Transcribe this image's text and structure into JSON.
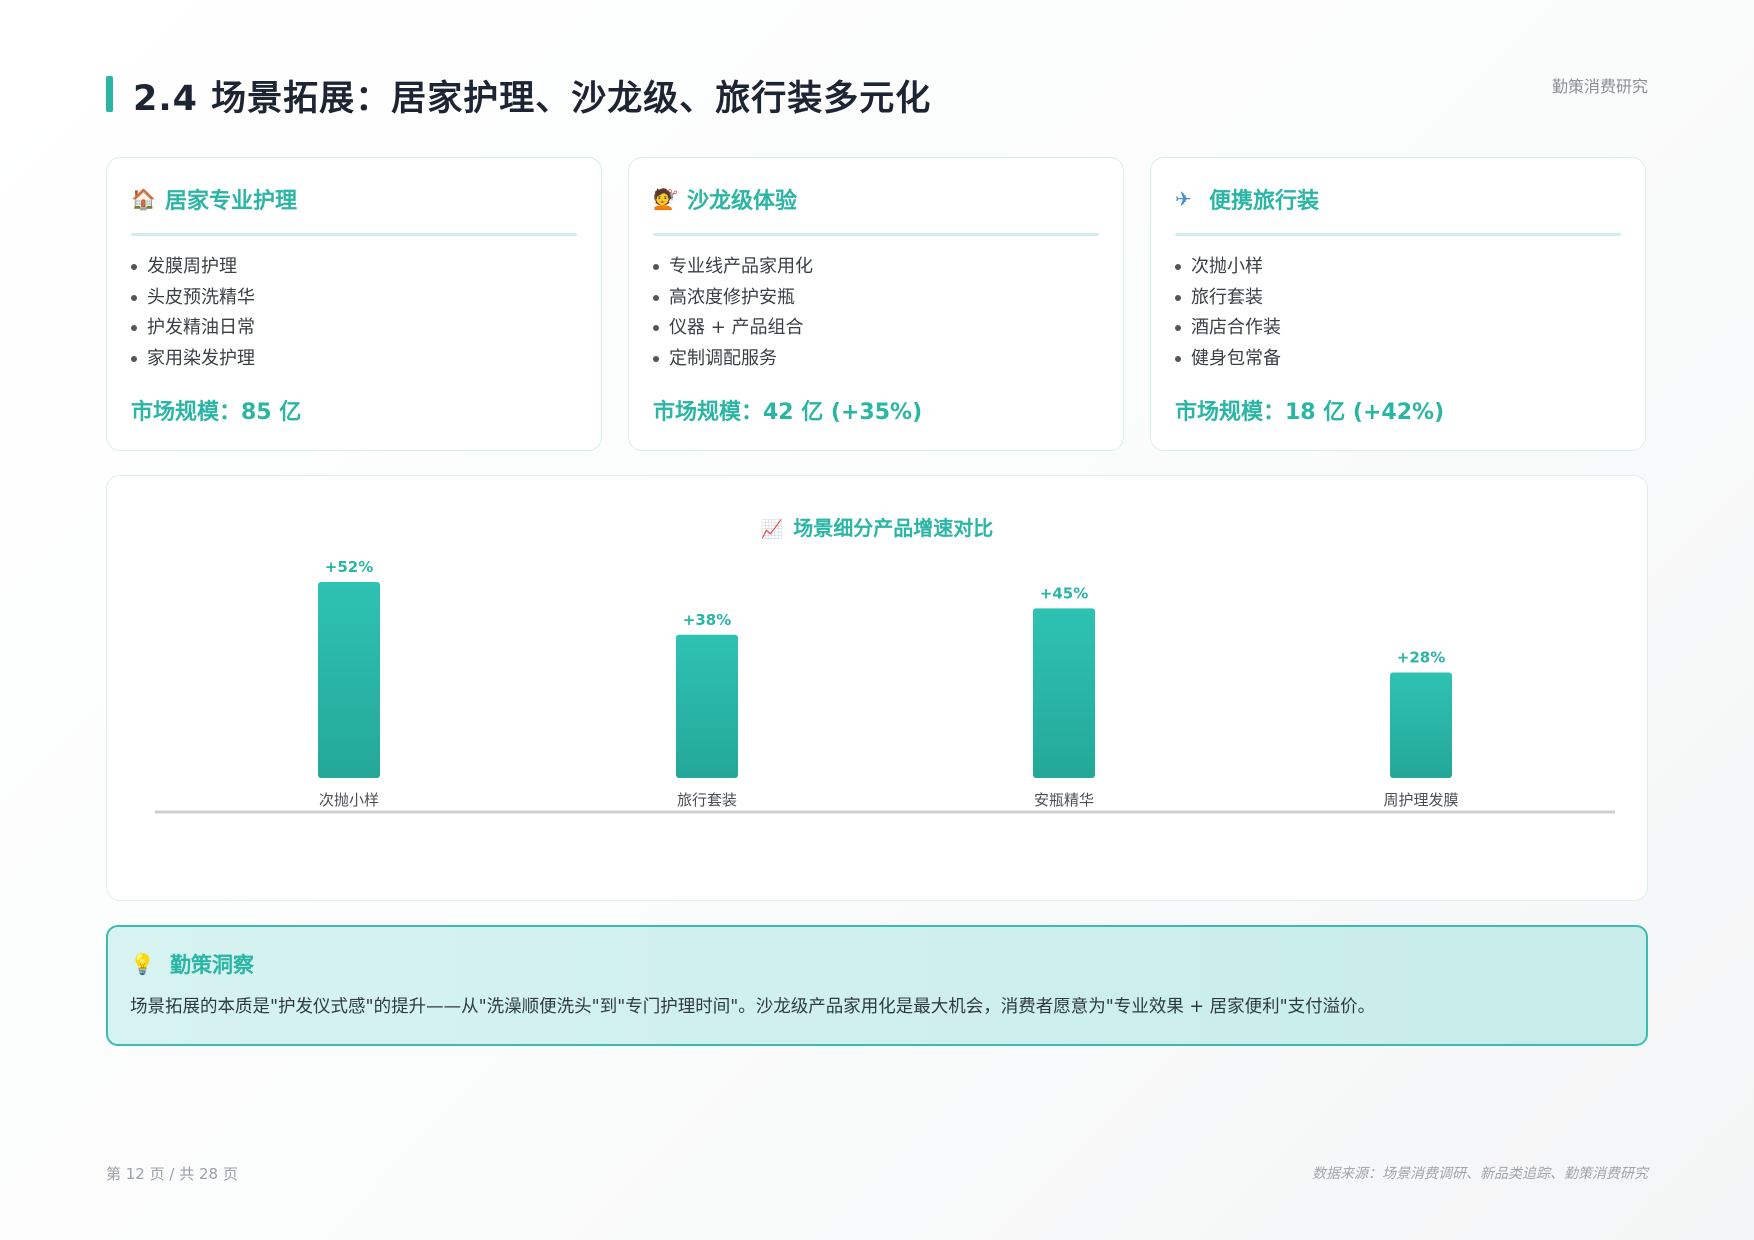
{
  "header": {
    "title": "2.4 场景拓展：居家护理、沙龙级、旅行装多元化",
    "brand": "勤策消费研究"
  },
  "cards": [
    {
      "icon": "house-icon",
      "title": "居家专业护理",
      "items": [
        "发膜周护理",
        "头皮预洗精华",
        "护发精油日常",
        "家用染发护理"
      ],
      "metric": "市场规模：85 亿"
    },
    {
      "icon": "hairdresser-icon",
      "title": "沙龙级体验",
      "items": [
        "专业线产品家用化",
        "高浓度修护安瓶",
        "仪器 + 产品组合",
        "定制调配服务"
      ],
      "metric": "市场规模：42 亿 (+35%)"
    },
    {
      "icon": "airplane-icon",
      "title": "便携旅行装",
      "items": [
        "次抛小样",
        "旅行套装",
        "酒店合作装",
        "健身包常备"
      ],
      "metric": "市场规模：18 亿 (+42%)"
    }
  ],
  "chart_data": {
    "type": "bar",
    "title": "场景细分产品增速对比",
    "title_icon": "chart-increasing-icon",
    "categories": [
      "次抛小样",
      "旅行套装",
      "安瓶精华",
      "周护理发膜"
    ],
    "values": [
      52,
      38,
      45,
      28
    ],
    "data_labels": [
      "+52%",
      "+38%",
      "+45%",
      "+28%"
    ],
    "ylim": [
      0,
      52
    ],
    "colors": {
      "bar_top": "#2ec2b3",
      "bar_bottom": "#24a898",
      "label": "#2bb5a5"
    },
    "grid": false
  },
  "insight": {
    "icon": "lightbulb-icon",
    "title": "勤策洞察",
    "text": "场景拓展的本质是\"护发仪式感\"的提升——从\"洗澡顺便洗头\"到\"专门护理时间\"。沙龙级产品家用化是最大机会，消费者愿意为\"专业效果 + 居家便利\"支付溢价。"
  },
  "footer": {
    "page": "第 12 页 / 共 28 页",
    "source": "数据来源：场景消费调研、新品类追踪、勤策消费研究"
  }
}
